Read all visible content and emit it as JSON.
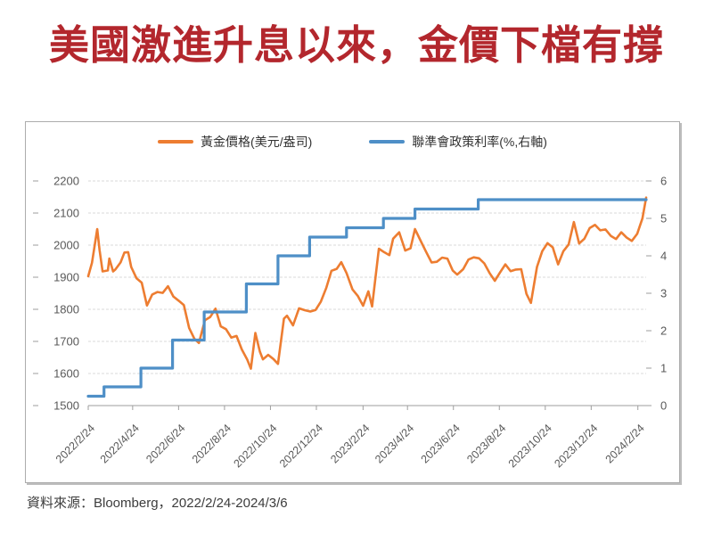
{
  "title": "美國激進升息以來，金價下檔有撐",
  "source_note": "資料來源：Bloomberg，2022/2/24-2024/3/6",
  "legend": [
    {
      "label": "黃金價格(美元/盎司)",
      "color": "#ED7D31"
    },
    {
      "label": "聯準會政策利率(%,右軸)",
      "color": "#4E8FC7"
    }
  ],
  "colors": {
    "title_red": "#B3272D",
    "gold_line": "#ED7D31",
    "rate_line": "#4E8FC7",
    "gridline": "#D8D8D8",
    "axis_line": "#B0B0B0",
    "tick_mark": "#9E9E9E",
    "axis_text": "#595959"
  },
  "chart_data": {
    "type": "line",
    "x_range": [
      "2022-02-24",
      "2024-03-06"
    ],
    "left_axis": {
      "title": "黃金價格(美元/盎司)",
      "min": 1500,
      "max": 2200,
      "ticks": [
        1500,
        1600,
        1700,
        1800,
        1900,
        2000,
        2100,
        2200
      ]
    },
    "right_axis": {
      "title": "聯準會政策利率(%,右軸)",
      "min": 0,
      "max": 6,
      "ticks": [
        0,
        1,
        2,
        3,
        4,
        5,
        6
      ]
    },
    "x_ticks": [
      {
        "date": "2022-02-24",
        "label": "2022/2/24"
      },
      {
        "date": "2022-04-24",
        "label": "2022/4/24"
      },
      {
        "date": "2022-06-24",
        "label": "2022/6/24"
      },
      {
        "date": "2022-08-24",
        "label": "2022/8/24"
      },
      {
        "date": "2022-10-24",
        "label": "2022/10/24"
      },
      {
        "date": "2022-12-24",
        "label": "2022/12/24"
      },
      {
        "date": "2023-02-24",
        "label": "2023/2/24"
      },
      {
        "date": "2023-04-24",
        "label": "2023/4/24"
      },
      {
        "date": "2023-06-24",
        "label": "2023/6/24"
      },
      {
        "date": "2023-08-24",
        "label": "2023/8/24"
      },
      {
        "date": "2023-10-24",
        "label": "2023/10/24"
      },
      {
        "date": "2023-12-24",
        "label": "2023/12/24"
      },
      {
        "date": "2024-02-24",
        "label": "2024/2/24"
      }
    ],
    "series": [
      {
        "name": "黃金價格(美元/盎司)",
        "axis": "left",
        "style": "line",
        "color": "#ED7D31",
        "points": [
          [
            "2022-02-24",
            1903
          ],
          [
            "2022-03-01",
            1945
          ],
          [
            "2022-03-08",
            2050
          ],
          [
            "2022-03-11",
            1985
          ],
          [
            "2022-03-15",
            1918
          ],
          [
            "2022-03-22",
            1921
          ],
          [
            "2022-03-24",
            1958
          ],
          [
            "2022-03-29",
            1918
          ],
          [
            "2022-04-01",
            1924
          ],
          [
            "2022-04-08",
            1946
          ],
          [
            "2022-04-13",
            1977
          ],
          [
            "2022-04-18",
            1978
          ],
          [
            "2022-04-22",
            1932
          ],
          [
            "2022-04-29",
            1897
          ],
          [
            "2022-05-06",
            1883
          ],
          [
            "2022-05-13",
            1812
          ],
          [
            "2022-05-20",
            1846
          ],
          [
            "2022-05-27",
            1854
          ],
          [
            "2022-06-03",
            1851
          ],
          [
            "2022-06-10",
            1872
          ],
          [
            "2022-06-17",
            1840
          ],
          [
            "2022-06-24",
            1827
          ],
          [
            "2022-07-01",
            1813
          ],
          [
            "2022-07-08",
            1742
          ],
          [
            "2022-07-15",
            1708
          ],
          [
            "2022-07-21",
            1695
          ],
          [
            "2022-07-29",
            1766
          ],
          [
            "2022-08-05",
            1776
          ],
          [
            "2022-08-12",
            1802
          ],
          [
            "2022-08-19",
            1747
          ],
          [
            "2022-08-26",
            1738
          ],
          [
            "2022-09-02",
            1712
          ],
          [
            "2022-09-09",
            1717
          ],
          [
            "2022-09-16",
            1675
          ],
          [
            "2022-09-23",
            1644
          ],
          [
            "2022-09-28",
            1615
          ],
          [
            "2022-10-04",
            1726
          ],
          [
            "2022-10-10",
            1668
          ],
          [
            "2022-10-14",
            1644
          ],
          [
            "2022-10-21",
            1658
          ],
          [
            "2022-10-28",
            1645
          ],
          [
            "2022-11-03",
            1630
          ],
          [
            "2022-11-11",
            1771
          ],
          [
            "2022-11-15",
            1780
          ],
          [
            "2022-11-23",
            1750
          ],
          [
            "2022-12-01",
            1803
          ],
          [
            "2022-12-09",
            1797
          ],
          [
            "2022-12-16",
            1793
          ],
          [
            "2022-12-23",
            1798
          ],
          [
            "2022-12-30",
            1824
          ],
          [
            "2023-01-06",
            1866
          ],
          [
            "2023-01-13",
            1920
          ],
          [
            "2023-01-20",
            1926
          ],
          [
            "2023-01-26",
            1947
          ],
          [
            "2023-02-02",
            1913
          ],
          [
            "2023-02-10",
            1862
          ],
          [
            "2023-02-17",
            1842
          ],
          [
            "2023-02-24",
            1811
          ],
          [
            "2023-03-03",
            1856
          ],
          [
            "2023-03-08",
            1809
          ],
          [
            "2023-03-17",
            1989
          ],
          [
            "2023-03-24",
            1978
          ],
          [
            "2023-03-31",
            1969
          ],
          [
            "2023-04-05",
            2020
          ],
          [
            "2023-04-13",
            2040
          ],
          [
            "2023-04-21",
            1983
          ],
          [
            "2023-04-28",
            1990
          ],
          [
            "2023-05-04",
            2050
          ],
          [
            "2023-05-12",
            2011
          ],
          [
            "2023-05-19",
            1978
          ],
          [
            "2023-05-26",
            1946
          ],
          [
            "2023-06-02",
            1948
          ],
          [
            "2023-06-09",
            1961
          ],
          [
            "2023-06-16",
            1958
          ],
          [
            "2023-06-23",
            1921
          ],
          [
            "2023-06-29",
            1908
          ],
          [
            "2023-07-07",
            1925
          ],
          [
            "2023-07-14",
            1955
          ],
          [
            "2023-07-21",
            1962
          ],
          [
            "2023-07-28",
            1959
          ],
          [
            "2023-08-04",
            1943
          ],
          [
            "2023-08-11",
            1913
          ],
          [
            "2023-08-18",
            1889
          ],
          [
            "2023-08-25",
            1915
          ],
          [
            "2023-09-01",
            1940
          ],
          [
            "2023-09-08",
            1919
          ],
          [
            "2023-09-15",
            1924
          ],
          [
            "2023-09-22",
            1925
          ],
          [
            "2023-09-29",
            1848
          ],
          [
            "2023-10-05",
            1820
          ],
          [
            "2023-10-13",
            1932
          ],
          [
            "2023-10-20",
            1981
          ],
          [
            "2023-10-27",
            2006
          ],
          [
            "2023-11-03",
            1993
          ],
          [
            "2023-11-10",
            1940
          ],
          [
            "2023-11-17",
            1981
          ],
          [
            "2023-11-24",
            2002
          ],
          [
            "2023-12-01",
            2072
          ],
          [
            "2023-12-08",
            2005
          ],
          [
            "2023-12-15",
            2020
          ],
          [
            "2023-12-22",
            2053
          ],
          [
            "2023-12-29",
            2063
          ],
          [
            "2024-01-05",
            2046
          ],
          [
            "2024-01-12",
            2049
          ],
          [
            "2024-01-19",
            2029
          ],
          [
            "2024-01-26",
            2019
          ],
          [
            "2024-02-02",
            2040
          ],
          [
            "2024-02-09",
            2024
          ],
          [
            "2024-02-16",
            2013
          ],
          [
            "2024-02-23",
            2035
          ],
          [
            "2024-03-01",
            2083
          ],
          [
            "2024-03-06",
            2148
          ]
        ]
      },
      {
        "name": "聯準會政策利率(%,右軸)",
        "axis": "right",
        "style": "step",
        "color": "#4E8FC7",
        "points": [
          [
            "2022-02-24",
            0.25
          ],
          [
            "2022-03-17",
            0.5
          ],
          [
            "2022-05-05",
            1.0
          ],
          [
            "2022-06-16",
            1.75
          ],
          [
            "2022-07-28",
            2.5
          ],
          [
            "2022-09-22",
            3.25
          ],
          [
            "2022-11-03",
            4.0
          ],
          [
            "2022-12-15",
            4.5
          ],
          [
            "2023-02-02",
            4.75
          ],
          [
            "2023-03-23",
            5.0
          ],
          [
            "2023-05-04",
            5.25
          ],
          [
            "2023-07-27",
            5.5
          ]
        ]
      }
    ]
  }
}
